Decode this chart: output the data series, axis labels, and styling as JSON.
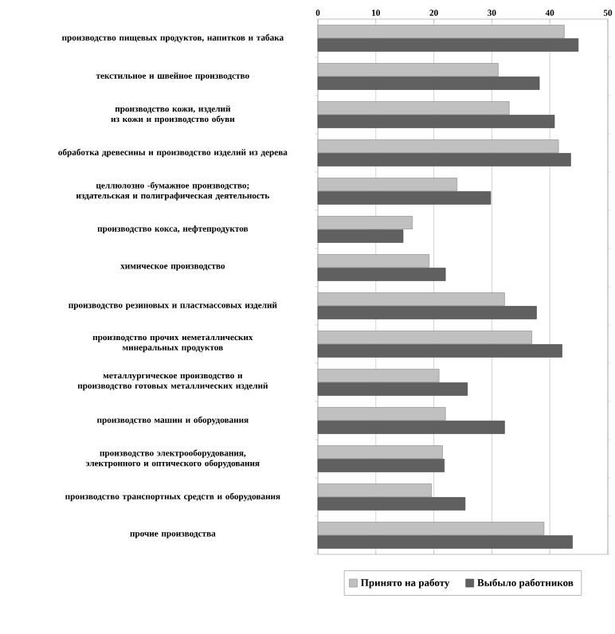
{
  "chart_data": {
    "type": "bar",
    "orientation": "horizontal",
    "categories": [
      "производство пищевых продуктов, напитков и табака",
      "текстильное и швейное производство",
      "производство кожи, изделий из кожи и производство обуви",
      "обработка древесины и производство изделий из дерева",
      "целлюлозно -бумажное производство; издательская и полиграфическая деятельность",
      "производство кокса, нефтепродуктов",
      "химическое производство",
      "производство резиновых и пластмассовых изделий",
      "производство прочих неметаллических минеральных продуктов",
      "металлургическое производство и производство готовых металлических изделий",
      "производство машин и оборудования",
      "производство электрооборудования, электронного и оптического оборудования",
      "производство транспортных средств и оборудования",
      "прочие производства"
    ],
    "series": [
      {
        "name": "Принято на работу",
        "color": "#c0c0c0",
        "values": [
          42.5,
          31.1,
          33.0,
          41.5,
          24.0,
          16.3,
          19.2,
          32.2,
          36.9,
          20.9,
          22.0,
          21.5,
          19.6,
          39.0
        ]
      },
      {
        "name": "Выбыло работников",
        "color": "#606060",
        "values": [
          44.9,
          38.2,
          40.8,
          43.6,
          29.8,
          14.7,
          22.0,
          37.7,
          42.1,
          25.8,
          32.2,
          21.8,
          25.4,
          43.9
        ]
      }
    ],
    "xlim": [
      0,
      50
    ],
    "xticks": [
      0,
      10,
      20,
      30,
      40,
      50
    ],
    "grid": "x",
    "legend": "bottom"
  }
}
